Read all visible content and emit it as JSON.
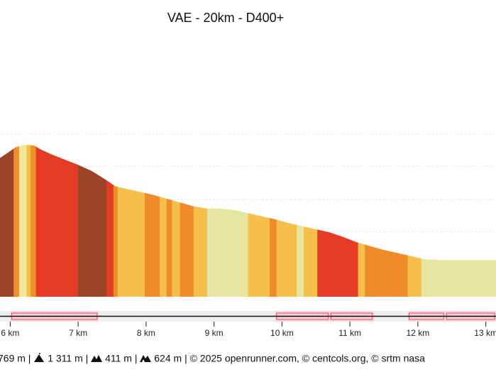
{
  "chart_data": {
    "type": "area",
    "title": "VAE - 20km - D400+",
    "xlabel": "",
    "ylabel": "",
    "xlim": [
      5.85,
      13.15
    ],
    "ylim": [
      0,
      1
    ],
    "grid": true,
    "x_tick_labels": [
      "6 km",
      "7 km",
      "8 km",
      "9 km",
      "10 km",
      "11 km",
      "12 km",
      "13 km"
    ],
    "x_ticks": [
      6,
      7,
      8,
      9,
      10,
      11,
      12,
      13
    ],
    "profile": {
      "x": [
        5.85,
        6.0,
        6.08,
        6.2,
        6.28,
        6.36,
        6.45,
        6.6,
        6.8,
        7.0,
        7.2,
        7.4,
        7.55,
        7.7,
        7.9,
        8.1,
        8.3,
        8.5,
        8.7,
        8.9,
        9.1,
        9.3,
        9.5,
        9.7,
        9.9,
        10.1,
        10.3,
        10.5,
        10.7,
        10.9,
        11.1,
        11.3,
        11.5,
        11.7,
        11.9,
        12.1,
        12.3,
        12.5,
        12.7,
        12.9,
        13.15
      ],
      "y": [
        0.905,
        0.95,
        0.975,
        0.99,
        0.99,
        0.985,
        0.96,
        0.93,
        0.895,
        0.86,
        0.82,
        0.765,
        0.72,
        0.705,
        0.685,
        0.665,
        0.64,
        0.615,
        0.59,
        0.575,
        0.575,
        0.565,
        0.545,
        0.525,
        0.505,
        0.48,
        0.46,
        0.44,
        0.42,
        0.39,
        0.355,
        0.33,
        0.305,
        0.285,
        0.265,
        0.245,
        0.24,
        0.24,
        0.24,
        0.24,
        0.24
      ]
    },
    "slope_segments": {
      "x_start": [
        5.85,
        6.05,
        6.13,
        6.24,
        6.3,
        6.38,
        7.0,
        7.42,
        7.52,
        7.58,
        7.98,
        8.2,
        8.3,
        8.38,
        8.5,
        8.7,
        8.9,
        9.5,
        9.82,
        9.92,
        10.22,
        10.32,
        10.52,
        10.92,
        11.12,
        11.22,
        11.35,
        11.85,
        12.05
      ],
      "x_end": [
        6.05,
        6.13,
        6.24,
        6.3,
        6.38,
        7.0,
        7.42,
        7.52,
        7.58,
        7.98,
        8.2,
        8.3,
        8.38,
        8.5,
        8.7,
        8.9,
        9.5,
        9.82,
        9.92,
        10.22,
        10.32,
        10.52,
        10.92,
        11.12,
        11.22,
        11.35,
        11.85,
        12.05,
        13.15
      ],
      "color": [
        "#9b4526",
        "#f08c2b",
        "#f2e79a",
        "#f4c04a",
        "#f08c2b",
        "#e43b24",
        "#9b4526",
        "#e43b24",
        "#f08c2b",
        "#f4c04a",
        "#f08c2b",
        "#f4c04a",
        "#f08c2b",
        "#f4c04a",
        "#f08c2b",
        "#f4c04a",
        "#e6e6a0",
        "#f4c04a",
        "#f08c2b",
        "#f4c04a",
        "#e6e6a0",
        "#f4c04a",
        "#e43b24",
        "#e43b24",
        "#f4c04a",
        "#f08c2b",
        "#f08c2b",
        "#f4c04a",
        "#e6e6a0"
      ]
    },
    "gridlines_y": [
      0.21,
      0.425,
      0.635,
      0.85,
      1.06
    ]
  },
  "route_bar": {
    "highlight_ranges": [
      [
        6.0,
        7.3
      ],
      [
        9.9,
        10.7
      ],
      [
        10.7,
        11.35
      ],
      [
        11.85,
        12.4
      ],
      [
        12.4,
        13.15
      ]
    ]
  },
  "footer": {
    "parts": [
      "769 m | ",
      " 1 311 m | ",
      " 411 m | ",
      " 624 m | © 2025 openrunner.com, © centcols.org, © srtm nasa"
    ],
    "icons": [
      "summit-icon",
      "mountains-icon",
      "mountains-icon"
    ]
  }
}
